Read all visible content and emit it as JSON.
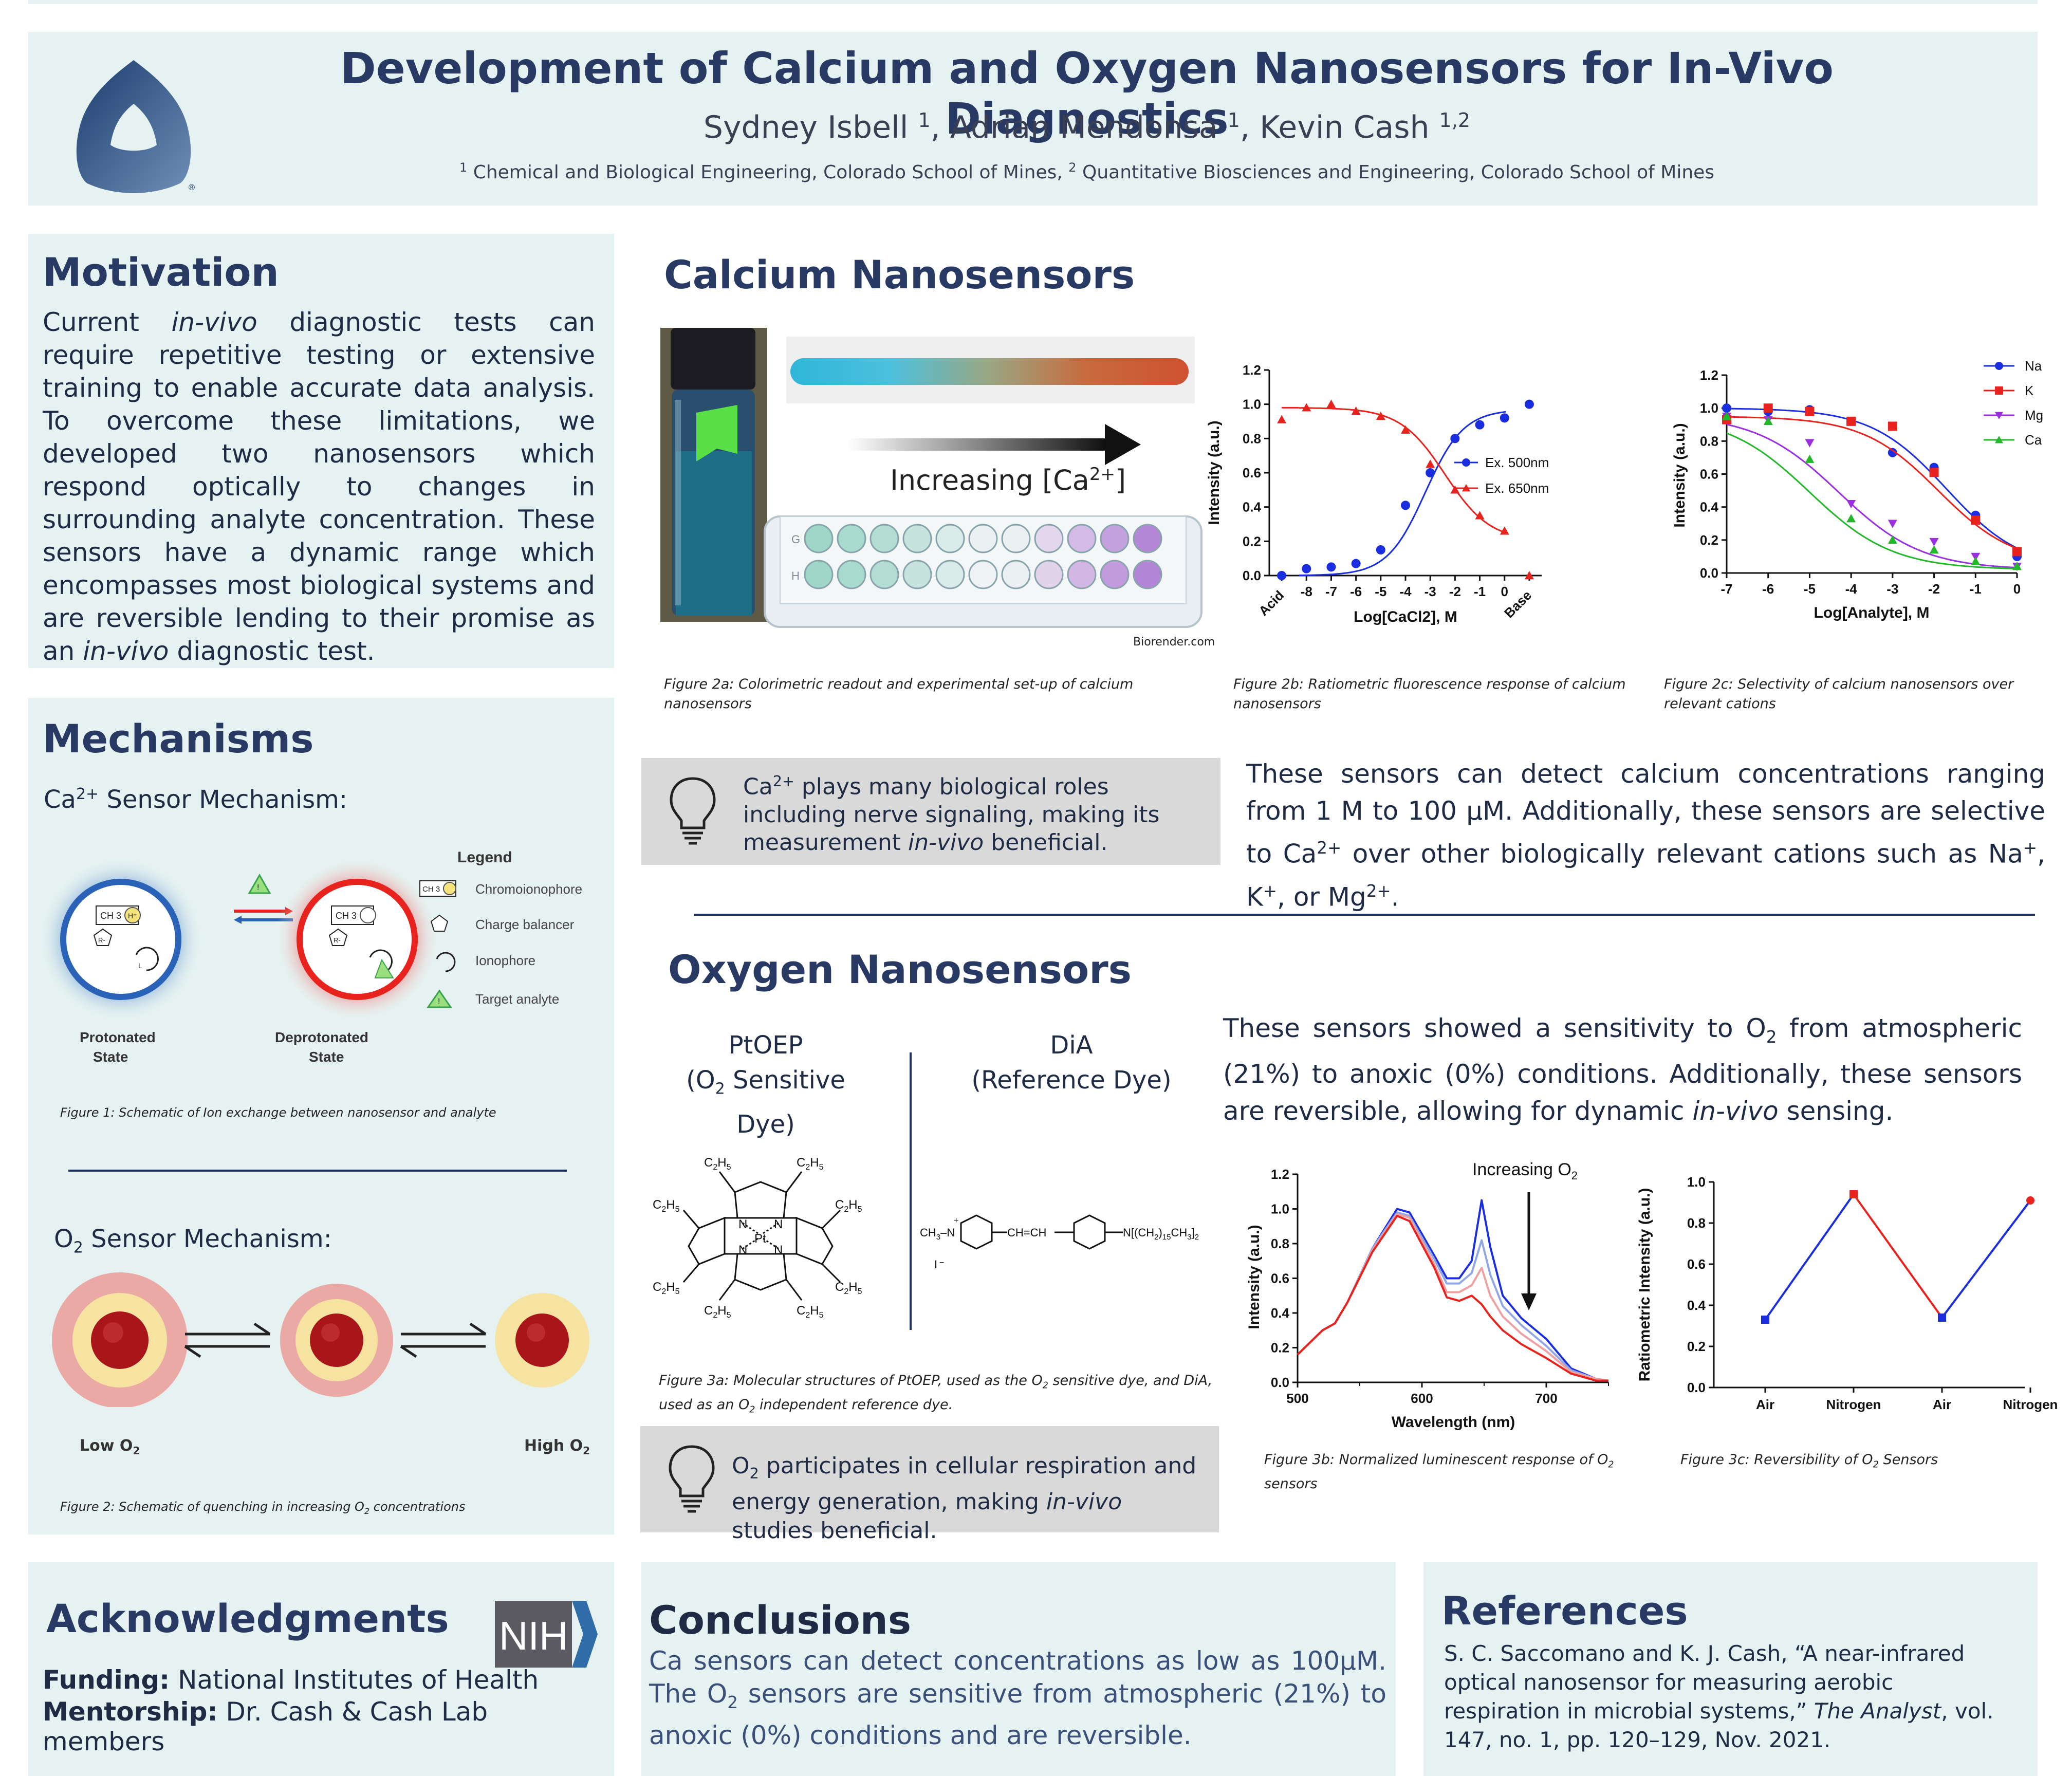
{
  "header": {
    "title": "Development of Calcium and Oxygen Nanosensors for In-Vivo Diagnostics",
    "authors": [
      {
        "name": "Sydney Isbell",
        "sup": "1"
      },
      {
        "name": "Adrian Mendonsa",
        "sup": "1"
      },
      {
        "name": "Kevin Cash",
        "sup": "1,2"
      }
    ],
    "affiliations": [
      {
        "sup": "1",
        "text": "Chemical and Biological Engineering, Colorado School of Mines,"
      },
      {
        "sup": "2",
        "text": "Quantitative Biosciences and Engineering, Colorado School of Mines"
      }
    ],
    "logo_mark": "®"
  },
  "motivation": {
    "heading": "Motivation",
    "text_parts": [
      {
        "t": "Current ",
        "i": false
      },
      {
        "t": "in-vivo",
        "i": true
      },
      {
        "t": " diagnostic tests can require repetitive testing or extensive training to enable accurate data analysis. To overcome these limitations, we developed two nanosensors which respond optically to changes in surrounding analyte concentration. These sensors have a dynamic range which encompasses most biological systems and are reversible lending to their promise as an ",
        "i": false
      },
      {
        "t": "in-vivo",
        "i": true
      },
      {
        "t": " diagnostic test.",
        "i": false
      }
    ]
  },
  "mechanisms": {
    "heading": "Mechanisms",
    "ca_label": "Ca",
    "ca_label_sup": "2+",
    "ca_label_rest": " Sensor Mechanism:",
    "legend_title": "Legend",
    "legend_items": [
      "Chromoionophore",
      "Charge balancer",
      "Ionophore",
      "Target analyte"
    ],
    "ch3": "CH 3",
    "hplus": "H⁺",
    "r_minus": "R-",
    "l_label": "L",
    "protonated": [
      "Protonated",
      "State"
    ],
    "deprotonated": [
      "Deprotonated",
      "State"
    ],
    "fig1_caption": "Figure 1: Schematic of Ion exchange between nanosensor and analyte",
    "o2_label": "O",
    "o2_label_sub": "2",
    "o2_label_rest": " Sensor Mechanism:",
    "low_o2": "Low O",
    "high_o2": "High O",
    "o2_sub": "2",
    "fig2_caption_a": "Figure 2: Schematic of  quenching in increasing O",
    "fig2_caption_b": " concentrations",
    "fig2_caption_sub": "2"
  },
  "calcium": {
    "heading": "Calcium Nanosensors",
    "increasing_label": "Increasing [Ca",
    "increasing_sup": "2+",
    "increasing_end": "]",
    "plate_rows": [
      "G",
      "H"
    ],
    "biorender": "Biorender.com",
    "fig2a_caption": "Figure 2a: Colorimetric readout and experimental set-up of calcium nanosensors",
    "fig2b_caption": "Figure 2b: Ratiometric fluorescence response of calcium nanosensors",
    "fig2c_caption": "Figure 2c: Selectivity of calcium nanosensors over relevant cations",
    "callout_parts": [
      {
        "t": "Ca",
        "i": false
      },
      {
        "t": "2+",
        "sup": true
      },
      {
        "t": " plays many biological roles including nerve signaling, making its measurement ",
        "i": false
      },
      {
        "t": "in-vivo",
        "i": true
      },
      {
        "t": " beneficial.",
        "i": false
      }
    ],
    "summary_parts": [
      {
        "t": "These sensors can detect calcium concentrations ranging from 1 M to 100 µM. Additionally, these sensors are selective to Ca"
      },
      {
        "t": "2+",
        "sup": true
      },
      {
        "t": " over other biologically relevant cations such as Na"
      },
      {
        "t": "+",
        "sup": true
      },
      {
        "t": ", K"
      },
      {
        "t": "+",
        "sup": true
      },
      {
        "t": ", or Mg"
      },
      {
        "t": "2+",
        "sup": true
      },
      {
        "t": "."
      }
    ]
  },
  "oxygen": {
    "heading": "Oxygen Nanosensors",
    "dye1_name": "PtOEP",
    "dye1_desc_a": "(O",
    "dye1_desc_sub": "2",
    "dye1_desc_b": " Sensitive Dye)",
    "dye2_name": "DiA",
    "dye2_desc": "(Reference Dye)",
    "summary_parts": [
      {
        "t": "These sensors showed a sensitivity to O"
      },
      {
        "t": "2",
        "sub": true
      },
      {
        "t": " from atmospheric (21%) to anoxic (0%) conditions. Additionally, these sensors are reversible, allowing for dynamic "
      },
      {
        "t": "in-vivo",
        "i": true
      },
      {
        "t": " sensing."
      }
    ],
    "fig3a_parts": [
      {
        "t": "Figure 3a: Molecular structures of PtOEP, used as the O"
      },
      {
        "t": "2",
        "sub": true
      },
      {
        "t": " sensitive dye, and DiA, used as an O"
      },
      {
        "t": "2",
        "sub": true
      },
      {
        "t": " independent reference dye."
      }
    ],
    "fig3b_parts": [
      {
        "t": "Figure 3b: Normalized luminescent response of O"
      },
      {
        "t": "2",
        "sub": true
      },
      {
        "t": " sensors"
      }
    ],
    "fig3c_caption": "Figure 3c: Reversibility of O",
    "fig3c_sub": "2",
    "fig3c_end": " Sensors",
    "callout_parts": [
      {
        "t": "O"
      },
      {
        "t": "2",
        "sub": true
      },
      {
        "t": " participates in cellular respiration and energy generation, making "
      },
      {
        "t": "in-vivo",
        "i": true
      },
      {
        "t": " studies beneficial."
      }
    ],
    "increasing_o2": "Increasing O",
    "increasing_o2_sub": "2"
  },
  "acknowledgments": {
    "heading": "Acknowledgments",
    "funding_label": "Funding:",
    "funding_text": " National Institutes of Health",
    "mentorship_label": "Mentorship:",
    "mentorship_text": " Dr. Cash & Cash Lab members",
    "nih": "NIH"
  },
  "conclusions": {
    "heading": "Conclusions",
    "text_parts": [
      {
        "t": "Ca sensors can detect concentrations as low as 100µM. The O"
      },
      {
        "t": "2",
        "sub": true
      },
      {
        "t": " sensors are sensitive from atmospheric (21%) to anoxic (0%) conditions and are reversible."
      }
    ]
  },
  "references": {
    "heading": "References",
    "text_parts": [
      {
        "t": "S. C. Saccomano and K. J. Cash, “A near-infrared optical nanosensor for measuring aerobic respiration in microbial systems,” "
      },
      {
        "t": "The Analyst",
        "i": true
      },
      {
        "t": ", vol. 147, no. 1, pp. 120–129, Nov. 2021."
      }
    ]
  },
  "colors": {
    "panel_bg": "#e6f2f1",
    "heading": "#283a63",
    "blue_series": "#1a2ee0",
    "red_series": "#e8221c",
    "green_series": "#23b82a",
    "purple_series": "#9b30e0"
  },
  "chart_data": [
    {
      "id": "fig2b",
      "type": "line",
      "xlabel": "Log[CaCl2], M",
      "ylabel": "Intensity (a.u.)",
      "ylim": [
        0,
        1.2
      ],
      "x_ticks": [
        "Acid",
        "-8",
        "-7",
        "-6",
        "-5",
        "-4",
        "-3",
        "-2",
        "-1",
        "0",
        "Base"
      ],
      "y_ticks": [
        "0.0",
        "0.2",
        "0.4",
        "0.6",
        "0.8",
        "1.0",
        "1.2"
      ],
      "legend_position": "right",
      "series": [
        {
          "name": "Ex. 500nm",
          "color": "#1a2ee0",
          "marker": "circle",
          "x": [
            -9,
            -8,
            -7,
            -6,
            -5,
            -4,
            -3,
            -2,
            -1,
            0,
            1
          ],
          "y": [
            0.0,
            0.04,
            0.05,
            0.07,
            0.15,
            0.41,
            0.6,
            0.8,
            0.88,
            0.92,
            1.0
          ]
        },
        {
          "name": "Ex. 650nm",
          "color": "#e8221c",
          "marker": "triangle",
          "x": [
            -9,
            -8,
            -7,
            -6,
            -5,
            -4,
            -3,
            -2,
            -1,
            0,
            1
          ],
          "y": [
            0.91,
            0.98,
            1.0,
            0.96,
            0.93,
            0.85,
            0.65,
            0.5,
            0.35,
            0.26,
            0.0
          ]
        }
      ]
    },
    {
      "id": "fig2c",
      "type": "line",
      "xlabel": "Log[Analyte], M",
      "ylabel": "Intensity (a.u.)",
      "ylim": [
        0,
        1.2
      ],
      "x_ticks": [
        "-7",
        "-6",
        "-5",
        "-4",
        "-3",
        "-2",
        "-1",
        "0"
      ],
      "y_ticks": [
        "0.0",
        "0.2",
        "0.4",
        "0.6",
        "0.8",
        "1.0",
        "1.2"
      ],
      "legend_position": "top-right",
      "series": [
        {
          "name": "Na",
          "color": "#1a2ee0",
          "marker": "circle",
          "x": [
            -7,
            -6,
            -5,
            -4,
            -3,
            -2,
            -1,
            0
          ],
          "y": [
            1.0,
            0.98,
            0.99,
            0.92,
            0.73,
            0.64,
            0.35,
            0.1
          ]
        },
        {
          "name": "K",
          "color": "#e8221c",
          "marker": "square",
          "x": [
            -7,
            -6,
            -5,
            -4,
            -3,
            -2,
            -1,
            0
          ],
          "y": [
            0.93,
            1.0,
            0.98,
            0.92,
            0.89,
            0.61,
            0.32,
            0.13
          ]
        },
        {
          "name": "Mg",
          "color": "#9b30e0",
          "marker": "triangle-down",
          "x": [
            -7,
            -6,
            -5,
            -4,
            -3,
            -2,
            -1,
            0
          ],
          "y": [
            0.95,
            0.93,
            0.79,
            0.42,
            0.3,
            0.19,
            0.1,
            0.04
          ]
        },
        {
          "name": "Ca",
          "color": "#23b82a",
          "marker": "triangle",
          "x": [
            -7,
            -6,
            -5,
            -4,
            -3,
            -2,
            -1,
            0
          ],
          "y": [
            0.95,
            0.92,
            0.69,
            0.33,
            0.2,
            0.14,
            0.07,
            0.04
          ]
        }
      ]
    },
    {
      "id": "fig3b",
      "type": "line",
      "xlabel": "Wavelength (nm)",
      "ylabel": "Intensity (a.u.)",
      "ylim": [
        0,
        1.2
      ],
      "xlim": [
        500,
        750
      ],
      "x_ticks": [
        "500",
        "600",
        "700"
      ],
      "y_ticks": [
        "0.0",
        "0.2",
        "0.4",
        "0.6",
        "0.8",
        "1.0",
        "1.2"
      ],
      "series": [
        {
          "name": "",
          "color": "#1a2ee0",
          "x": [
            500,
            520,
            530,
            540,
            560,
            580,
            590,
            610,
            620,
            630,
            640,
            648,
            655,
            665,
            680,
            700,
            720,
            740,
            750
          ],
          "y": [
            0.16,
            0.3,
            0.34,
            0.46,
            0.77,
            1.0,
            0.98,
            0.73,
            0.6,
            0.6,
            0.7,
            1.05,
            0.78,
            0.5,
            0.37,
            0.25,
            0.08,
            0.02,
            0.01
          ]
        },
        {
          "name": "",
          "color": "#8fa6e8",
          "x": [
            500,
            520,
            530,
            540,
            560,
            580,
            590,
            610,
            620,
            630,
            640,
            648,
            655,
            665,
            680,
            700,
            720,
            740,
            750
          ],
          "y": [
            0.16,
            0.3,
            0.34,
            0.46,
            0.77,
            0.98,
            0.96,
            0.71,
            0.57,
            0.57,
            0.63,
            0.82,
            0.62,
            0.44,
            0.33,
            0.21,
            0.07,
            0.02,
            0.01
          ]
        },
        {
          "name": "",
          "color": "#f0a0a0",
          "x": [
            500,
            520,
            530,
            540,
            560,
            580,
            590,
            610,
            620,
            630,
            640,
            648,
            655,
            665,
            680,
            700,
            720,
            740,
            750
          ],
          "y": [
            0.16,
            0.3,
            0.34,
            0.46,
            0.76,
            0.97,
            0.95,
            0.68,
            0.52,
            0.52,
            0.56,
            0.66,
            0.5,
            0.38,
            0.28,
            0.18,
            0.06,
            0.02,
            0.01
          ]
        },
        {
          "name": "",
          "color": "#e8221c",
          "x": [
            500,
            520,
            530,
            540,
            560,
            580,
            590,
            610,
            620,
            630,
            640,
            648,
            655,
            665,
            680,
            700,
            720,
            740,
            750
          ],
          "y": [
            0.16,
            0.3,
            0.34,
            0.46,
            0.75,
            0.96,
            0.93,
            0.66,
            0.49,
            0.47,
            0.5,
            0.45,
            0.38,
            0.3,
            0.22,
            0.14,
            0.05,
            0.01,
            0.01
          ]
        }
      ]
    },
    {
      "id": "fig3c",
      "type": "line",
      "ylabel": "Ratiometric Intensity (a.u.)",
      "ylim": [
        0,
        1.0
      ],
      "categories": [
        "Air",
        "Nitrogen",
        "Air",
        "Nitrogen"
      ],
      "y_ticks": [
        "0.0",
        "0.2",
        "0.4",
        "0.6",
        "0.8",
        "1.0"
      ],
      "series": [
        {
          "name": "",
          "values": [
            0.33,
            0.94,
            0.34,
            0.91
          ]
        }
      ]
    }
  ]
}
